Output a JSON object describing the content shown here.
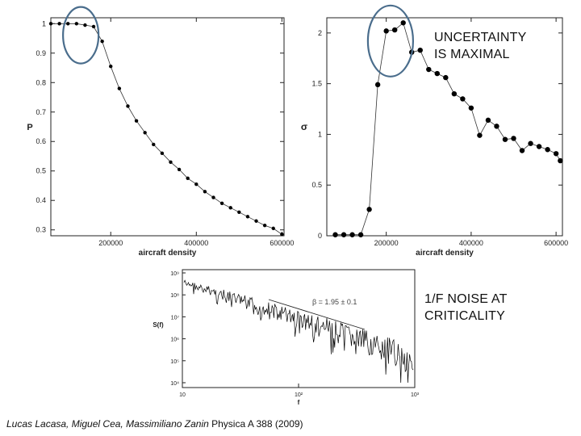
{
  "callouts": {
    "uncertainty": [
      "UNCERTAINTY",
      "IS MAXIMAL"
    ],
    "noise": [
      "1/F NOISE AT",
      "CRITICALITY"
    ]
  },
  "citation": {
    "authors": "Lucas Lacasa, Miguel Cea, Massimiliano Zanin",
    "journal": " Physica A 388 (2009)"
  },
  "colors": {
    "highlight_ellipse": "#4a6d8c",
    "marker": "#000000"
  },
  "chart_data": [
    {
      "type": "line",
      "xlabel": "aircraft density",
      "ylabel": "P",
      "xlim": [
        60000,
        605000
      ],
      "ylim": [
        0.28,
        1.02
      ],
      "x_ticks": [
        200000,
        400000,
        600000
      ],
      "x_tick_labels": [
        "200000",
        "400000",
        "600000"
      ],
      "y_ticks": [
        0.3,
        0.4,
        0.5,
        0.6,
        0.7,
        0.8,
        0.9,
        1
      ],
      "y_tick_labels": [
        "0.3",
        "0.4",
        "0.5",
        "0.6",
        "0.7",
        "0.8",
        "0.9",
        "1"
      ],
      "marker": "small-dot",
      "grid": false,
      "highlight": {
        "x": 130000,
        "y": 0.98,
        "shape": "ellipse"
      },
      "series": [
        {
          "x": [
            60000,
            80000,
            100000,
            120000,
            140000,
            160000,
            180000,
            200000,
            220000,
            240000,
            260000,
            280000,
            300000,
            320000,
            340000,
            360000,
            380000,
            400000,
            420000,
            440000,
            460000,
            480000,
            500000,
            520000,
            540000,
            560000,
            580000,
            600000
          ],
          "y": [
            1.0,
            1.0,
            1.0,
            1.0,
            0.995,
            0.99,
            0.94,
            0.855,
            0.78,
            0.72,
            0.67,
            0.63,
            0.59,
            0.56,
            0.53,
            0.505,
            0.475,
            0.455,
            0.43,
            0.41,
            0.39,
            0.375,
            0.36,
            0.345,
            0.33,
            0.315,
            0.305,
            0.285
          ]
        }
      ]
    },
    {
      "type": "line",
      "xlabel": "aircraft density",
      "ylabel": "σ",
      "xlim": [
        60000,
        615000
      ],
      "ylim": [
        0,
        2.15
      ],
      "x_ticks": [
        200000,
        400000,
        600000
      ],
      "x_tick_labels": [
        "200000",
        "400000",
        "600000"
      ],
      "y_ticks": [
        0,
        0.5,
        1,
        1.5,
        2
      ],
      "y_tick_labels": [
        "0",
        "0.5",
        "1",
        "1.5",
        "2"
      ],
      "marker": "large-dot",
      "grid": false,
      "highlight": {
        "x": 210000,
        "y": 2.0,
        "shape": "ellipse"
      },
      "series": [
        {
          "x": [
            80000,
            100000,
            120000,
            140000,
            160000,
            180000,
            200000,
            220000,
            240000,
            260000,
            280000,
            300000,
            320000,
            340000,
            360000,
            380000,
            400000,
            420000,
            440000,
            460000,
            480000,
            500000,
            520000,
            540000,
            560000,
            580000,
            600000,
            610000
          ],
          "y": [
            0.01,
            0.01,
            0.01,
            0.01,
            0.26,
            1.49,
            2.02,
            2.03,
            2.1,
            1.81,
            1.83,
            1.64,
            1.6,
            1.56,
            1.4,
            1.35,
            1.26,
            0.99,
            1.14,
            1.08,
            0.95,
            0.96,
            0.84,
            0.91,
            0.88,
            0.85,
            0.81,
            0.74
          ]
        }
      ]
    },
    {
      "type": "line",
      "xlabel": "f",
      "ylabel": "S(f)",
      "x_scale": "log",
      "y_scale": "log",
      "x_tick_labels": [
        "10",
        "10²",
        "10³"
      ],
      "y_tick_labels": [
        "10⁹",
        "10⁸",
        "10⁷",
        "10⁶",
        "10⁵",
        "10⁴"
      ],
      "annotation": "β = 1.95 ± 0.1",
      "fit_line": {
        "slope": -1.95
      },
      "grid": false,
      "series": [
        {
          "style": "noisy-power-law"
        }
      ]
    }
  ]
}
